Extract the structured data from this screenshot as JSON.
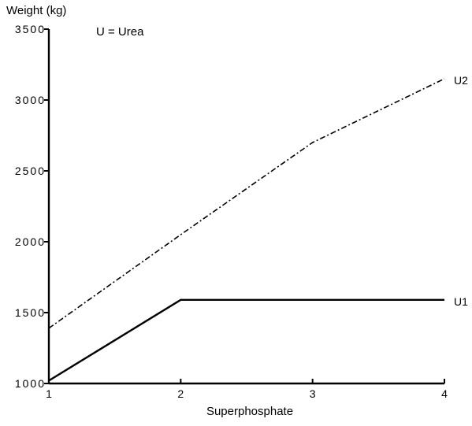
{
  "chart_data": {
    "type": "line",
    "title": "",
    "xlabel": "Superphosphate",
    "ylabel": "Weight (kg)",
    "annotation": "U = Urea",
    "x": [
      1,
      2,
      3,
      4
    ],
    "x_tick_labels": [
      "1",
      "2",
      "3",
      "4"
    ],
    "xlim": [
      1,
      4
    ],
    "ylim": [
      1000,
      3500
    ],
    "y_ticks": [
      1000,
      1500,
      2000,
      2500,
      3000,
      3500
    ],
    "y_tick_labels": [
      "1000",
      "1500",
      "2000",
      "2500",
      "3000",
      "3500"
    ],
    "grid": false,
    "legend": "none",
    "series": [
      {
        "name": "U1",
        "style": "solid",
        "color": "#000000",
        "points": [
          [
            1,
            1020
          ],
          [
            2,
            1590
          ],
          [
            3,
            1590
          ],
          [
            4,
            1590
          ]
        ]
      },
      {
        "name": "U2",
        "style": "dash-dot",
        "color": "#000000",
        "points": [
          [
            1,
            1390
          ],
          [
            2,
            2050
          ],
          [
            3,
            2700
          ],
          [
            4,
            3150
          ]
        ]
      }
    ]
  }
}
